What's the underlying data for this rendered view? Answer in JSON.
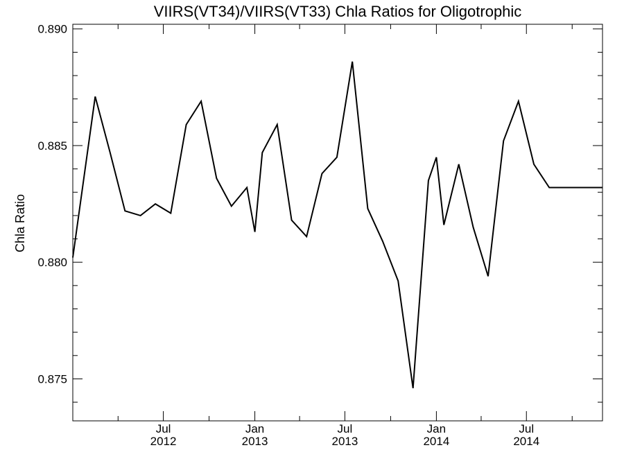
{
  "chart_data": {
    "type": "line",
    "title": "VIIRS(VT34)/VIIRS(VT33)  Chla Ratios for Oligotrophic",
    "xlabel": "",
    "ylabel": "Chla Ratio",
    "ylim": [
      0.8732,
      0.8902
    ],
    "xlim": [
      "2012-01-01",
      "2014-12-01"
    ],
    "grid": false,
    "y_ticks": [
      {
        "value": 0.875,
        "label": "0.875"
      },
      {
        "value": 0.88,
        "label": "0.880"
      },
      {
        "value": 0.885,
        "label": "0.885"
      },
      {
        "value": 0.89,
        "label": "0.890"
      }
    ],
    "x_ticks": [
      {
        "value": "2012-07-01",
        "month": "Jul",
        "year": "2012"
      },
      {
        "value": "2013-01-01",
        "month": "Jan",
        "year": "2013"
      },
      {
        "value": "2013-07-01",
        "month": "Jul",
        "year": "2013"
      },
      {
        "value": "2014-01-01",
        "month": "Jan",
        "year": "2014"
      },
      {
        "value": "2014-07-01",
        "month": "Jul",
        "year": "2014"
      }
    ],
    "series": [
      {
        "x": [
          "2012-01-01",
          "2012-02-15",
          "2012-03-16",
          "2012-04-15",
          "2012-05-16",
          "2012-06-15",
          "2012-07-16",
          "2012-08-16",
          "2012-09-15",
          "2012-10-16",
          "2012-11-15",
          "2012-12-16",
          "2013-01-01",
          "2013-01-16",
          "2013-02-15",
          "2013-03-16",
          "2013-04-15",
          "2013-05-16",
          "2013-06-15",
          "2013-07-16",
          "2013-08-16",
          "2013-09-15",
          "2013-10-16",
          "2013-11-15",
          "2013-12-16",
          "2014-01-01",
          "2014-01-16",
          "2014-02-15",
          "2014-03-16",
          "2014-04-15",
          "2014-05-16",
          "2014-06-15",
          "2014-07-16",
          "2014-08-16",
          "2014-09-15",
          "2014-10-16",
          "2014-11-15",
          "2014-12-01"
        ],
        "values": [
          0.8802,
          0.8871,
          0.8847,
          0.8822,
          0.882,
          0.8825,
          0.8821,
          0.8859,
          0.8869,
          0.8836,
          0.8824,
          0.8832,
          0.8813,
          0.8847,
          0.8859,
          0.8818,
          0.8811,
          0.8838,
          0.8845,
          0.8886,
          0.8823,
          0.8809,
          0.8792,
          0.8746,
          0.8835,
          0.8845,
          0.8816,
          0.8842,
          0.8815,
          0.8794,
          0.8852,
          0.8869,
          0.8842,
          0.8832,
          0.8832,
          0.8832,
          0.8832,
          0.8832
        ]
      }
    ]
  }
}
